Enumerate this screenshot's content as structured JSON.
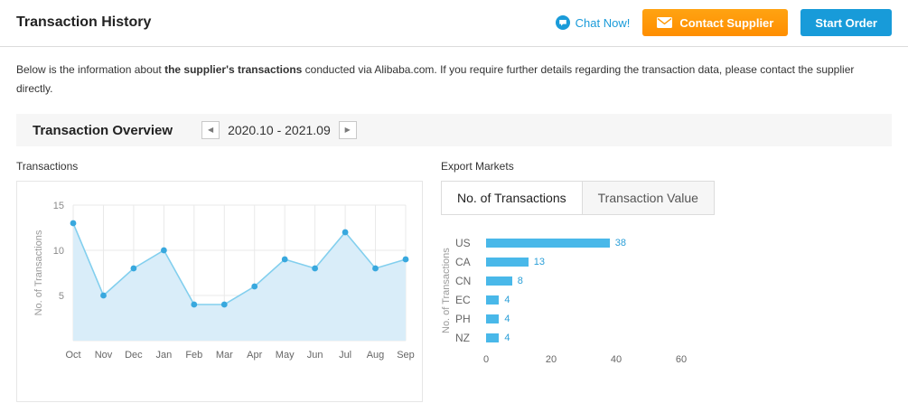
{
  "header": {
    "title": "Transaction History",
    "chat_label": "Chat Now!",
    "contact_supplier_label": "Contact Supplier",
    "start_order_label": "Start Order"
  },
  "description": {
    "text_before_bold": "Below is the information about ",
    "bold_text": "the supplier's transactions",
    "text_after_bold": " conducted via Alibaba.com. If you require further details regarding the transaction data, please contact the supplier directly."
  },
  "overview": {
    "title": "Transaction Overview",
    "date_range": "2020.10 - 2021.09"
  },
  "panels": {
    "transactions_label": "Transactions",
    "export_markets_label": "Export Markets",
    "tabs": [
      {
        "label": "No. of Transactions",
        "active": true
      },
      {
        "label": "Transaction Value",
        "active": false
      }
    ]
  },
  "icons": {
    "chat": "chat-bubble-icon",
    "envelope": "envelope-icon",
    "prev": "◀",
    "next": "▶"
  },
  "colors": {
    "accent_blue": "#1a9bd9",
    "button_orange": "#ff9600",
    "button_blue": "#189bd9",
    "bar_blue": "#49b8e9",
    "area_fill": "#d9edf9",
    "line_blue": "#82cfee",
    "dot_blue": "#38a8de"
  },
  "chart_data": [
    {
      "type": "line",
      "title": "Transactions",
      "x": [
        "Oct",
        "Nov",
        "Dec",
        "Jan",
        "Feb",
        "Mar",
        "Apr",
        "May",
        "Jun",
        "Jul",
        "Aug",
        "Sep"
      ],
      "values": [
        13,
        5,
        8,
        10,
        4,
        4,
        6,
        9,
        8,
        12,
        8,
        9
      ],
      "ylabel": "No. of Transactions",
      "ylim": [
        0,
        15
      ],
      "yticks": [
        5,
        10,
        15
      ],
      "grid": true,
      "area": true,
      "legend": "none"
    },
    {
      "type": "bar",
      "title": "Export Markets - No. of Transactions",
      "orientation": "horizontal",
      "categories": [
        "US",
        "CA",
        "CN",
        "EC",
        "PH",
        "NZ"
      ],
      "values": [
        38,
        13,
        8,
        4,
        4,
        4
      ],
      "ylabel": "No. of Transactions",
      "xlim": [
        0,
        60
      ],
      "xticks": [
        0,
        20,
        40,
        60
      ],
      "grid": false,
      "legend": "none"
    }
  ]
}
